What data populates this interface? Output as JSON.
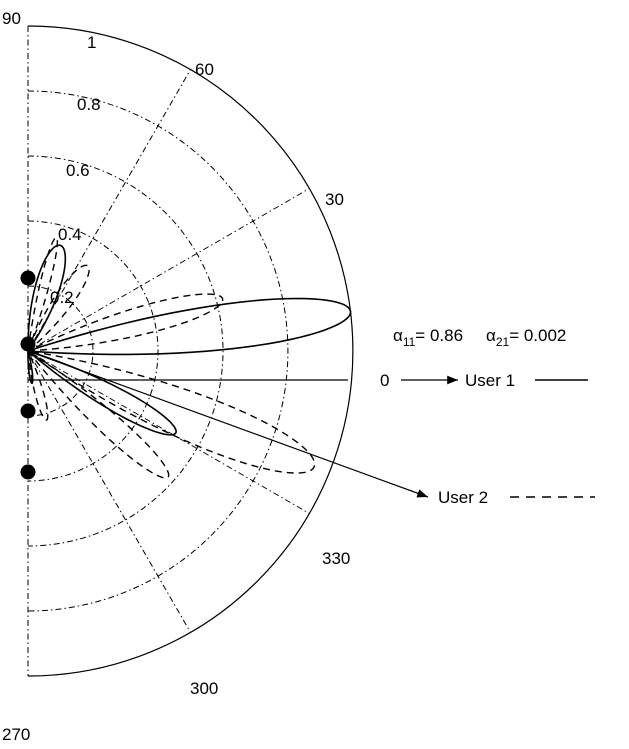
{
  "chart_data": {
    "type": "polar",
    "radial_ticks": [
      "0.2",
      "0.4",
      "0.6",
      "0.8",
      "1"
    ],
    "angle_ticks": [
      "90",
      "60",
      "30",
      "0",
      "330",
      "300",
      "270"
    ],
    "angle_range_deg": [
      -90,
      90
    ],
    "r_max": 1,
    "series": [
      {
        "label": "User 1",
        "line_style": "solid",
        "lobes": [
          {
            "peak_angle_deg": 7,
            "peak_r": 1.0,
            "halfwidth_deg": 7
          },
          {
            "peak_angle_deg": 73,
            "peak_r": 0.34,
            "halfwidth_deg": 11
          },
          {
            "peak_angle_deg": -29,
            "peak_r": 0.52,
            "halfwidth_deg": 7
          },
          {
            "peak_angle_deg": -83,
            "peak_r": 0.1,
            "halfwidth_deg": 5
          }
        ]
      },
      {
        "label": "User 2",
        "line_style": "dashed",
        "lobes": [
          {
            "peak_angle_deg": -22,
            "peak_r": 0.95,
            "halfwidth_deg": 8
          },
          {
            "peak_angle_deg": -42,
            "peak_r": 0.58,
            "halfwidth_deg": 6
          },
          {
            "peak_angle_deg": 15,
            "peak_r": 0.62,
            "halfwidth_deg": 7
          },
          {
            "peak_angle_deg": 55,
            "peak_r": 0.32,
            "halfwidth_deg": 9
          },
          {
            "peak_angle_deg": 76,
            "peak_r": 0.36,
            "halfwidth_deg": 4
          },
          {
            "peak_angle_deg": -75,
            "peak_r": 0.22,
            "halfwidth_deg": 6
          }
        ]
      }
    ],
    "element_dots": 4,
    "arrows": [
      {
        "label": "User 1",
        "angle_deg": 0,
        "legend_line": "solid"
      },
      {
        "label": "User 2",
        "angle_deg": -20,
        "legend_line": "dashed"
      }
    ],
    "annotation": {
      "a11_symbol": "α",
      "a11_sub": "11",
      "a11_value": "= 0.86",
      "a21_symbol": "α",
      "a21_sub": "21",
      "a21_value": "= 0.002"
    }
  }
}
